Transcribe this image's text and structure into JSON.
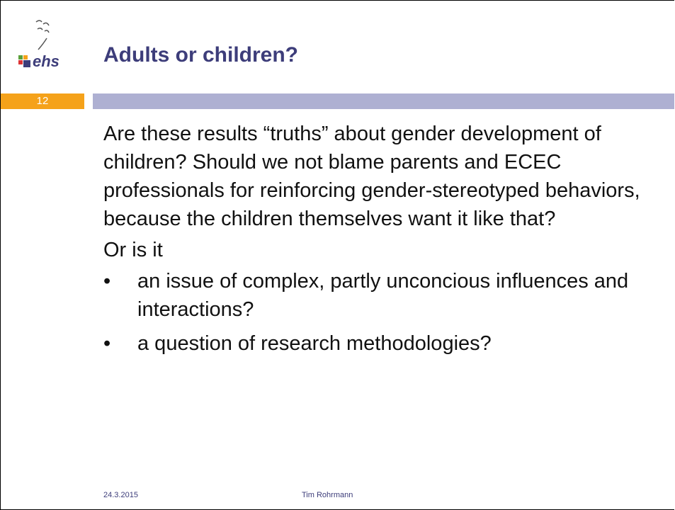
{
  "header": {
    "title": "Adults or children?",
    "slide_number": "12",
    "logo": "ehs"
  },
  "body": {
    "paragraphs": [
      "Are these results “truths” about gender development of children? Should we not blame parents and ECEC professionals for reinforcing gender-stereotyped behaviors, because the children themselves want it like that?",
      "Or is it"
    ],
    "bullets": [
      "an issue of complex, partly unconcious influences and interactions?",
      "a question of research methodologies?"
    ]
  },
  "footer": {
    "date": "24.3.2015",
    "author": "Tim Rohrmann"
  }
}
